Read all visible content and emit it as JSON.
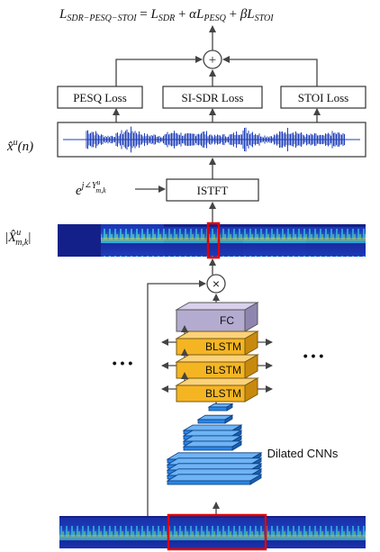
{
  "equation": {
    "lhs": "L",
    "lhs_sub": "SDR−PESQ−STOI",
    "eq": " = ",
    "t1": "L",
    "t1_sub": "SDR",
    "plus1": " + ",
    "alpha": "α",
    "t2": "L",
    "t2_sub": "PESQ",
    "plus2": " + ",
    "beta": "β",
    "t3": "L",
    "t3_sub": "STOI"
  },
  "losses": {
    "pesq": "PESQ Loss",
    "sisdr": "SI-SDR Loss",
    "stoi": "STOI Loss"
  },
  "signal_label": {
    "x": "x̂",
    "sup": "u",
    "arg": "(n)"
  },
  "phase_label": {
    "base": "e",
    "exp_main": "j∠Y",
    "exp_sup": "u",
    "exp_sub": "m,k"
  },
  "istft_label": "ISTFT",
  "magnitude_label": {
    "bar": "|",
    "x": "X̂",
    "sup": "u",
    "sub": "m,k"
  },
  "operators": {
    "plus": "+",
    "times": "×"
  },
  "network": {
    "fc": "FC",
    "blstm": [
      "BLSTM",
      "BLSTM",
      "BLSTM"
    ],
    "cnn": "Dilated CNNs",
    "ellipsis_left": "• • •",
    "ellipsis_right": "• • •"
  },
  "colors": {
    "fc": "#b4abd0",
    "blstm": "#f5b523",
    "cnn": "#2a86e8",
    "highlight": "#e00000",
    "waveform": "#1f3fb8",
    "spectrogram_bg": "#14208a"
  }
}
